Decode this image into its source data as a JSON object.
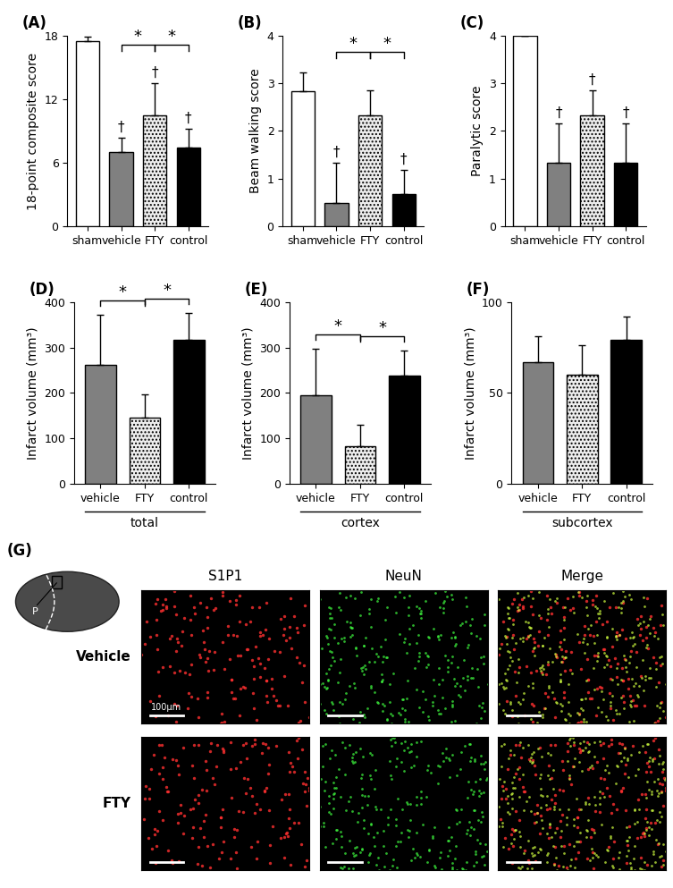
{
  "chart_data": [
    {
      "type": "bar",
      "title": "(A)",
      "y_label": "18-point composite score",
      "categories": [
        "sham",
        "vehicle",
        "FTY",
        "control"
      ],
      "values": [
        17.5,
        7.0,
        10.5,
        7.4
      ],
      "errors": [
        0.4,
        1.4,
        3.0,
        1.8
      ],
      "colors": [
        "#ffffff",
        "#808080",
        "#eeeeee",
        "#000000"
      ],
      "ylim": [
        0,
        18
      ],
      "yticks": [
        0,
        6,
        12,
        18
      ],
      "annotations": [
        {
          "category": "vehicle",
          "text": "†"
        },
        {
          "category": "FTY",
          "text": "†"
        },
        {
          "category": "control",
          "text": "†"
        }
      ],
      "significance": [
        {
          "from": "vehicle",
          "to": "FTY",
          "label": "*"
        },
        {
          "from": "FTY",
          "to": "control",
          "label": "*"
        }
      ]
    },
    {
      "type": "bar",
      "title": "(B)",
      "y_label": "Beam walking score",
      "categories": [
        "sham",
        "vehicle",
        "FTY",
        "control"
      ],
      "values": [
        2.83,
        0.5,
        2.33,
        0.67
      ],
      "errors": [
        0.4,
        0.83,
        0.52,
        0.52
      ],
      "colors": [
        "#ffffff",
        "#808080",
        "#eeeeee",
        "#000000"
      ],
      "ylim": [
        0,
        4
      ],
      "yticks": [
        0,
        1,
        2,
        3,
        4
      ],
      "annotations": [
        {
          "category": "vehicle",
          "text": "†"
        },
        {
          "category": "control",
          "text": "†"
        }
      ],
      "significance": [
        {
          "from": "vehicle",
          "to": "FTY",
          "label": "*"
        },
        {
          "from": "FTY",
          "to": "control",
          "label": "*"
        }
      ]
    },
    {
      "type": "bar",
      "title": "(C)",
      "y_label": "Paralytic score",
      "categories": [
        "sham",
        "vehicle",
        "FTY",
        "control"
      ],
      "values": [
        4.0,
        1.33,
        2.33,
        1.33
      ],
      "errors": [
        0.0,
        0.82,
        0.52,
        0.82
      ],
      "colors": [
        "#ffffff",
        "#808080",
        "#eeeeee",
        "#000000"
      ],
      "ylim": [
        0,
        4
      ],
      "yticks": [
        0,
        1,
        2,
        3,
        4
      ],
      "annotations": [
        {
          "category": "vehicle",
          "text": "†"
        },
        {
          "category": "FTY",
          "text": "†"
        },
        {
          "category": "control",
          "text": "†"
        }
      ],
      "significance": []
    },
    {
      "type": "bar",
      "title": "(D)",
      "y_label": "Infarct volume (mm³)",
      "group_label": "total",
      "categories": [
        "vehicle",
        "FTY",
        "control"
      ],
      "values": [
        262,
        145,
        316
      ],
      "errors": [
        110,
        52,
        60
      ],
      "colors": [
        "#808080",
        "#eeeeee",
        "#000000"
      ],
      "ylim": [
        0,
        400
      ],
      "yticks": [
        0,
        100,
        200,
        300,
        400
      ],
      "annotations": [],
      "significance": [
        {
          "from": "vehicle",
          "to": "FTY",
          "label": "*"
        },
        {
          "from": "FTY",
          "to": "control",
          "label": "*"
        }
      ]
    },
    {
      "type": "bar",
      "title": "(E)",
      "y_label": "Infarct volume (mm³)",
      "group_label": "cortex",
      "categories": [
        "vehicle",
        "FTY",
        "control"
      ],
      "values": [
        195,
        83,
        238
      ],
      "errors": [
        102,
        47,
        55
      ],
      "colors": [
        "#808080",
        "#eeeeee",
        "#000000"
      ],
      "ylim": [
        0,
        400
      ],
      "yticks": [
        0,
        100,
        200,
        300,
        400
      ],
      "annotations": [],
      "significance": [
        {
          "from": "vehicle",
          "to": "FTY",
          "label": "*"
        },
        {
          "from": "FTY",
          "to": "control",
          "label": "*"
        }
      ]
    },
    {
      "type": "bar",
      "title": "(F)",
      "y_label": "Infarct volume (mm³)",
      "group_label": "subcortex",
      "categories": [
        "vehicle",
        "FTY",
        "control"
      ],
      "values": [
        67,
        60,
        79
      ],
      "errors": [
        14,
        16,
        13
      ],
      "colors": [
        "#808080",
        "#eeeeee",
        "#000000"
      ],
      "ylim": [
        0,
        100
      ],
      "yticks": [
        0,
        50,
        100
      ],
      "annotations": [],
      "significance": []
    }
  ],
  "panel_g": {
    "title": "(G)",
    "columns": [
      "S1P1",
      "NeuN",
      "Merge"
    ],
    "rows": [
      "Vehicle",
      "FTY"
    ],
    "scale_bar": "100μm",
    "region_label": "P"
  }
}
